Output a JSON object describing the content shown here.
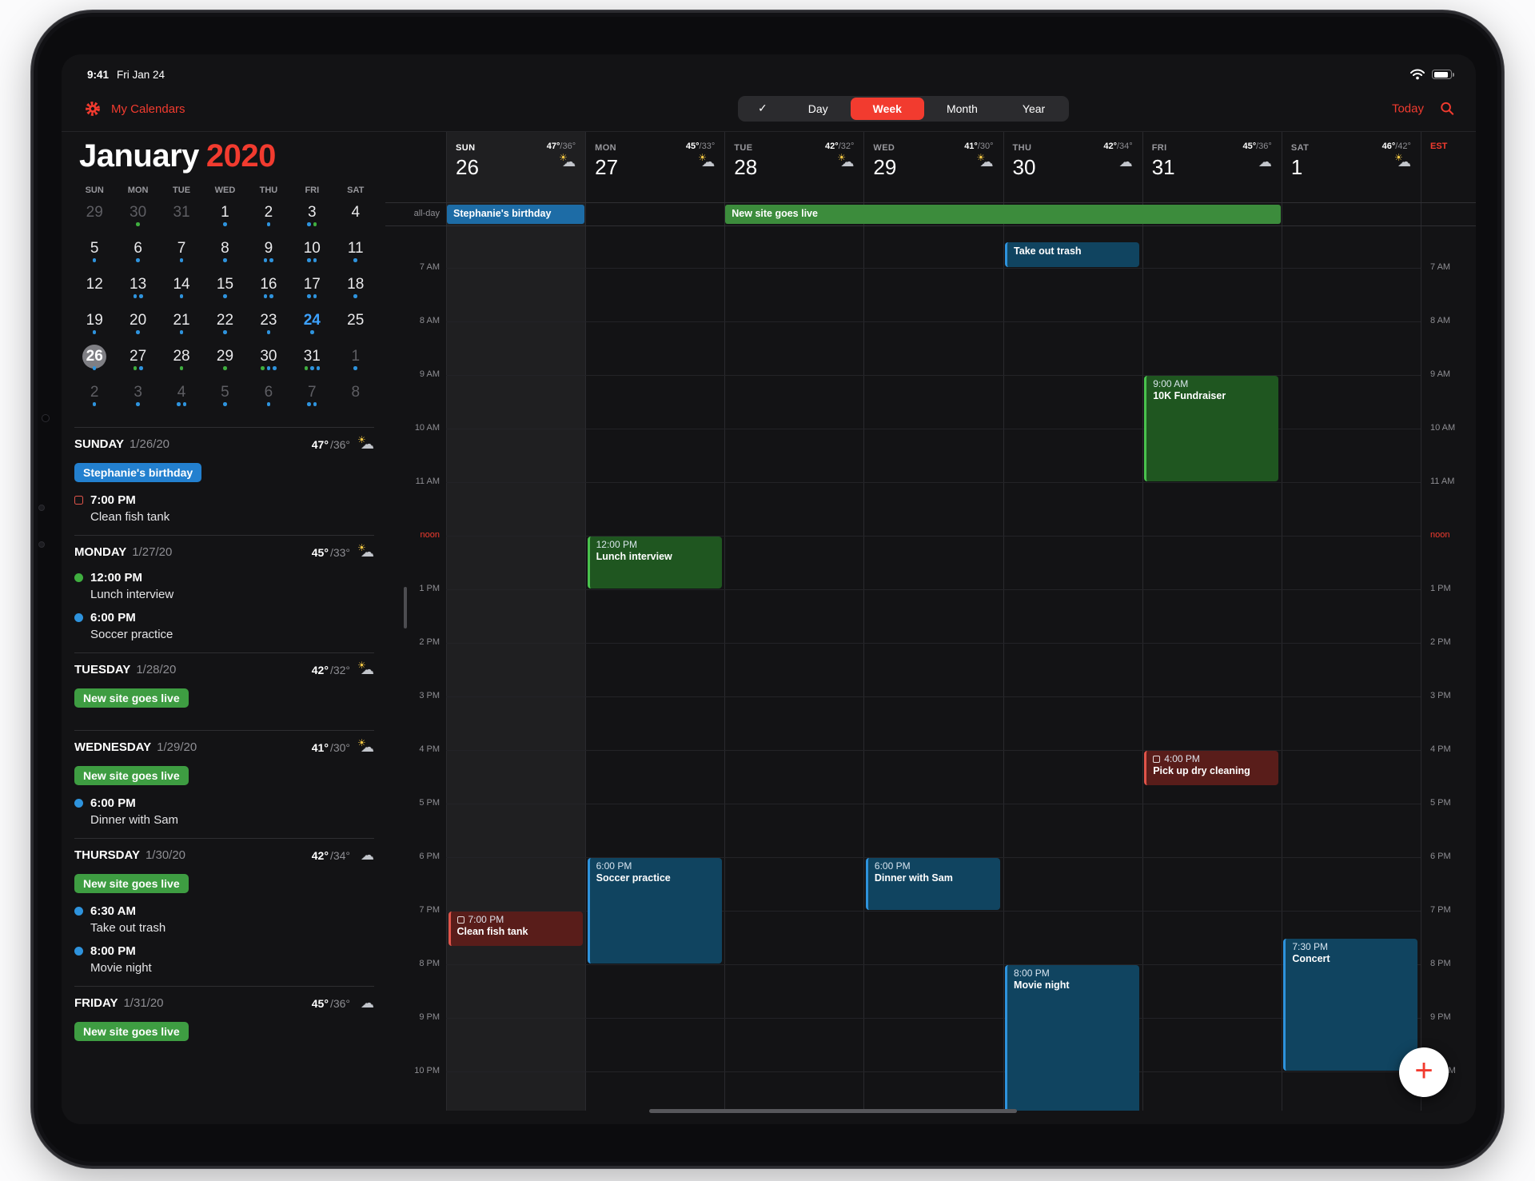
{
  "colors": {
    "accent": "#f23b2f",
    "blue_pill": "#2380cf",
    "green_pill": "#3e9d42"
  },
  "status": {
    "time": "9:41",
    "date": "Fri Jan 24"
  },
  "toolbar": {
    "calendars_label": "My Calendars",
    "segments": [
      "✓",
      "Day",
      "Week",
      "Month",
      "Year"
    ],
    "selected_segment": "Week",
    "today_label": "Today"
  },
  "mini_calendar": {
    "month": "January",
    "year": "2020",
    "day_headers": [
      "SUN",
      "MON",
      "TUE",
      "WED",
      "THU",
      "FRI",
      "SAT"
    ],
    "today": "24",
    "today_dow": "FRI",
    "selected": "26",
    "weeks": [
      [
        {
          "d": "29",
          "o": 1
        },
        {
          "d": "30",
          "o": 1,
          "dots": [
            "g"
          ]
        },
        {
          "d": "31",
          "o": 1
        },
        {
          "d": "1",
          "dots": [
            "b"
          ]
        },
        {
          "d": "2",
          "dots": [
            "b"
          ]
        },
        {
          "d": "3",
          "dots": [
            "b",
            "g"
          ]
        },
        {
          "d": "4"
        }
      ],
      [
        {
          "d": "5",
          "dots": [
            "b"
          ]
        },
        {
          "d": "6",
          "dots": [
            "b"
          ]
        },
        {
          "d": "7",
          "dots": [
            "b"
          ]
        },
        {
          "d": "8",
          "dots": [
            "b"
          ]
        },
        {
          "d": "9",
          "dots": [
            "b",
            "b"
          ]
        },
        {
          "d": "10",
          "dots": [
            "b",
            "b"
          ]
        },
        {
          "d": "11",
          "dots": [
            "b"
          ]
        }
      ],
      [
        {
          "d": "12"
        },
        {
          "d": "13",
          "dots": [
            "b",
            "b"
          ]
        },
        {
          "d": "14",
          "dots": [
            "b"
          ]
        },
        {
          "d": "15",
          "dots": [
            "b"
          ]
        },
        {
          "d": "16",
          "dots": [
            "b",
            "b"
          ]
        },
        {
          "d": "17",
          "dots": [
            "b",
            "b"
          ]
        },
        {
          "d": "18",
          "dots": [
            "b"
          ]
        }
      ],
      [
        {
          "d": "19",
          "dots": [
            "b"
          ]
        },
        {
          "d": "20",
          "dots": [
            "b"
          ]
        },
        {
          "d": "21",
          "dots": [
            "b"
          ]
        },
        {
          "d": "22",
          "dots": [
            "b"
          ]
        },
        {
          "d": "23",
          "dots": [
            "b"
          ]
        },
        {
          "d": "24",
          "dots": [
            "b"
          ]
        },
        {
          "d": "25"
        }
      ],
      [
        {
          "d": "26",
          "dots": [
            "b"
          ]
        },
        {
          "d": "27",
          "dots": [
            "g",
            "b"
          ]
        },
        {
          "d": "28",
          "dots": [
            "g"
          ]
        },
        {
          "d": "29",
          "dots": [
            "g"
          ]
        },
        {
          "d": "30",
          "dots": [
            "g",
            "b",
            "b"
          ]
        },
        {
          "d": "31",
          "dots": [
            "g",
            "b",
            "b"
          ]
        },
        {
          "d": "1",
          "o": 1,
          "dots": [
            "b"
          ]
        }
      ],
      [
        {
          "d": "2",
          "o": 1,
          "dots": [
            "b"
          ]
        },
        {
          "d": "3",
          "o": 1,
          "dots": [
            "b"
          ]
        },
        {
          "d": "4",
          "o": 1,
          "dots": [
            "b",
            "b"
          ]
        },
        {
          "d": "5",
          "o": 1,
          "dots": [
            "b"
          ]
        },
        {
          "d": "6",
          "o": 1,
          "dots": [
            "b"
          ]
        },
        {
          "d": "7",
          "o": 1,
          "dots": [
            "b",
            "b"
          ]
        },
        {
          "d": "8",
          "o": 1
        }
      ]
    ]
  },
  "agenda": [
    {
      "day": "SUNDAY",
      "date": "1/26/20",
      "temp_hi": "47°",
      "temp_lo": "/36°",
      "icon": "partly",
      "items": [
        {
          "kind": "pill",
          "color": "blue",
          "label": "Stephanie's birthday"
        },
        {
          "kind": "event",
          "marker": "task-red",
          "time": "7:00 PM",
          "title": "Clean fish tank"
        }
      ]
    },
    {
      "day": "MONDAY",
      "date": "1/27/20",
      "temp_hi": "45°",
      "temp_lo": "/33°",
      "icon": "partly",
      "items": [
        {
          "kind": "event",
          "marker": "dot-green",
          "time": "12:00 PM",
          "title": "Lunch interview"
        },
        {
          "kind": "event",
          "marker": "dot-blue",
          "time": "6:00 PM",
          "title": "Soccer practice"
        }
      ]
    },
    {
      "day": "TUESDAY",
      "date": "1/28/20",
      "temp_hi": "42°",
      "temp_lo": "/32°",
      "icon": "partly",
      "items": [
        {
          "kind": "pill",
          "color": "green",
          "label": "New site goes live"
        }
      ]
    },
    {
      "day": "WEDNESDAY",
      "date": "1/29/20",
      "temp_hi": "41°",
      "temp_lo": "/30°",
      "icon": "partly",
      "items": [
        {
          "kind": "pill",
          "color": "green",
          "label": "New site goes live"
        },
        {
          "kind": "event",
          "marker": "dot-blue",
          "time": "6:00 PM",
          "title": "Dinner with Sam"
        }
      ]
    },
    {
      "day": "THURSDAY",
      "date": "1/30/20",
      "temp_hi": "42°",
      "temp_lo": "/34°",
      "icon": "cloud",
      "items": [
        {
          "kind": "pill",
          "color": "green",
          "label": "New site goes live"
        },
        {
          "kind": "event",
          "marker": "dot-blue",
          "time": "6:30 AM",
          "title": "Take out trash"
        },
        {
          "kind": "event",
          "marker": "dot-blue",
          "time": "8:00 PM",
          "title": "Movie night"
        }
      ]
    },
    {
      "day": "FRIDAY",
      "date": "1/31/20",
      "temp_hi": "45°",
      "temp_lo": "/36°",
      "icon": "cloud",
      "items": [
        {
          "kind": "pill",
          "color": "green",
          "label": "New site goes live"
        }
      ]
    }
  ],
  "week": {
    "timezone": "EST",
    "all_day_label": "all-day",
    "days": [
      {
        "dow": "SUN",
        "date": "26",
        "hi": "47°",
        "lo": "/36°",
        "icon": "partly",
        "selected": true
      },
      {
        "dow": "MON",
        "date": "27",
        "hi": "45°",
        "lo": "/33°",
        "icon": "partly"
      },
      {
        "dow": "TUE",
        "date": "28",
        "hi": "42°",
        "lo": "/32°",
        "icon": "partly"
      },
      {
        "dow": "WED",
        "date": "29",
        "hi": "41°",
        "lo": "/30°",
        "icon": "partly"
      },
      {
        "dow": "THU",
        "date": "30",
        "hi": "42°",
        "lo": "/34°",
        "icon": "cloud"
      },
      {
        "dow": "FRI",
        "date": "31",
        "hi": "45°",
        "lo": "/36°",
        "icon": "cloud"
      },
      {
        "dow": "SAT",
        "date": "1",
        "hi": "46°",
        "lo": "/42°",
        "icon": "partly"
      }
    ],
    "hours": [
      "7 AM",
      "8 AM",
      "9 AM",
      "10 AM",
      "11 AM",
      "noon",
      "1 PM",
      "2 PM",
      "3 PM",
      "4 PM",
      "5 PM",
      "6 PM",
      "7 PM",
      "8 PM",
      "9 PM",
      "10 PM"
    ],
    "all_day_events": [
      {
        "label": "Stephanie's birthday",
        "day": 0,
        "span": 1,
        "color": "blue"
      },
      {
        "label": "New site goes live",
        "day": 2,
        "span": 4,
        "color": "green"
      }
    ],
    "events": [
      {
        "day": 0,
        "start": 19,
        "end": 19.67,
        "time": "7:00 PM",
        "title": "Clean fish tank",
        "color": "red",
        "task": true
      },
      {
        "day": 1,
        "start": 12,
        "end": 13,
        "time": "12:00 PM",
        "title": "Lunch interview",
        "color": "green"
      },
      {
        "day": 1,
        "start": 18,
        "end": 20,
        "time": "6:00 PM",
        "title": "Soccer practice",
        "color": "blue"
      },
      {
        "day": 3,
        "start": 18,
        "end": 19,
        "time": "6:00 PM",
        "title": "Dinner with Sam",
        "color": "blue"
      },
      {
        "day": 4,
        "start": 6.5,
        "end": 7,
        "time": "",
        "title": "Take out trash",
        "color": "blue"
      },
      {
        "day": 4,
        "start": 20,
        "end": 23,
        "time": "8:00 PM",
        "title": "Movie night",
        "color": "blue"
      },
      {
        "day": 5,
        "start": 9,
        "end": 11,
        "time": "9:00 AM",
        "title": "10K Fundraiser",
        "color": "green"
      },
      {
        "day": 5,
        "start": 16,
        "end": 16.67,
        "time": "4:00 PM",
        "title": "Pick up dry cleaning",
        "color": "red",
        "task": true
      },
      {
        "day": 6,
        "start": 19.5,
        "end": 22,
        "time": "7:30 PM",
        "title": "Concert",
        "color": "blue"
      }
    ]
  },
  "fab": {
    "label": "+"
  }
}
